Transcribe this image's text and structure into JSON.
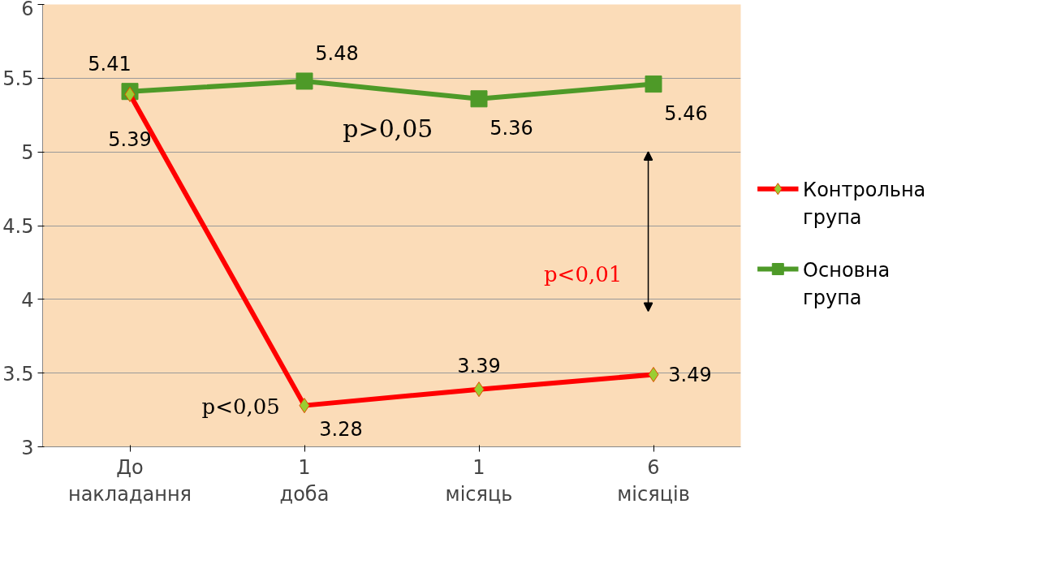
{
  "chart_data": {
    "type": "line",
    "categories": [
      "До накладання",
      "1 доба",
      "1 місяць",
      "6 місяців"
    ],
    "series": [
      {
        "name": "Контрольна група",
        "color": "#ff0000",
        "marker": "diamond",
        "values": [
          5.39,
          3.28,
          3.39,
          3.49
        ]
      },
      {
        "name": "Основна група",
        "color": "#4e9a28",
        "marker": "square",
        "values": [
          5.41,
          5.48,
          5.36,
          5.46
        ]
      }
    ],
    "data_labels": true,
    "ylim": [
      3,
      6
    ],
    "yticks": [
      3,
      3.5,
      4,
      4.5,
      5,
      5.5,
      6
    ],
    "grid": "y",
    "legend": "right",
    "annotations": [
      "p>0,05",
      "p<0,01",
      "p<0,05"
    ]
  }
}
